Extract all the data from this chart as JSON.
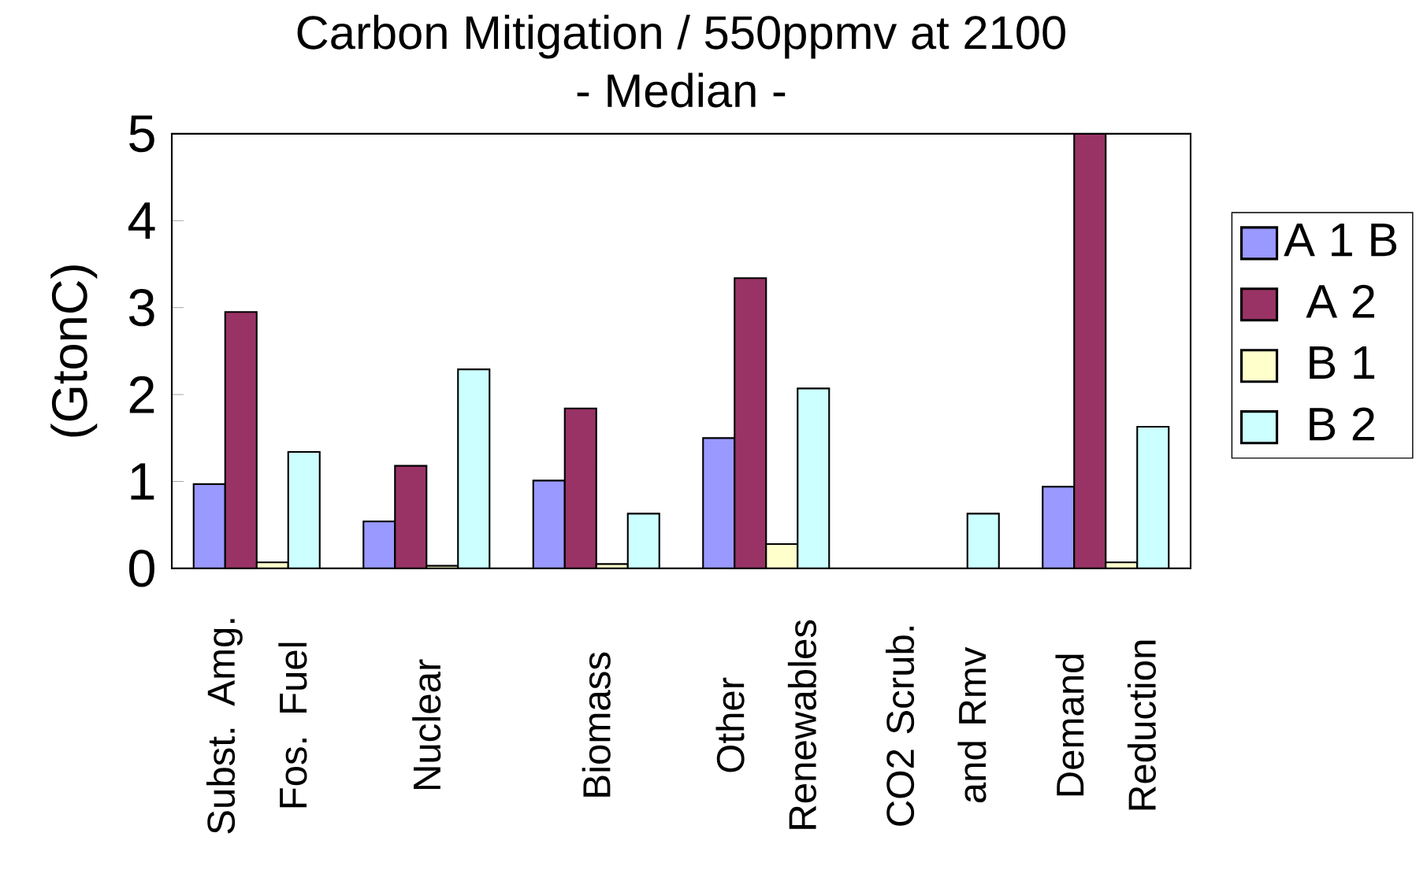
{
  "chart_data": {
    "type": "bar",
    "title": "Carbon Mitigation / 550ppmv at 2100",
    "subtitle": "- Median -",
    "ylabel": "(GtonC)",
    "categories": [
      "Subst. Amg. Fos. Fuel",
      "Nuclear",
      "Biomass",
      "Other Renewables",
      "CO2 Scrub. and Rmv",
      "Demand Reduction"
    ],
    "series": [
      {
        "name": "A 1 B",
        "color": "#9999ff",
        "values": [
          0.97,
          0.54,
          1.01,
          1.5,
          null,
          0.94
        ]
      },
      {
        "name": "A 2",
        "color": "#993366",
        "values": [
          2.95,
          1.18,
          1.84,
          3.34,
          null,
          5
        ]
      },
      {
        "name": "B 1",
        "color": "#ffffcc",
        "values": [
          0.07,
          0.03,
          0.05,
          0.28,
          null,
          0.07
        ]
      },
      {
        "name": "B 2",
        "color": "#ccffff",
        "values": [
          1.34,
          2.29,
          0.63,
          2.07,
          0.63,
          1.63
        ]
      }
    ],
    "ylim": [
      0,
      5
    ],
    "yticks": [
      0,
      1,
      2,
      3,
      4,
      5
    ],
    "legend": "right"
  }
}
